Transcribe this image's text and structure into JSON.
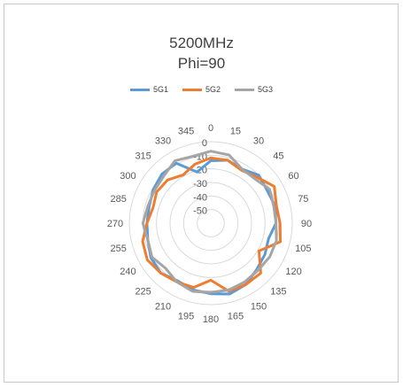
{
  "chart_data": {
    "type": "radar",
    "title": "5200MHz",
    "subtitle": "Phi=90",
    "angles": [
      "0",
      "15",
      "30",
      "45",
      "60",
      "75",
      "90",
      "105",
      "120",
      "135",
      "150",
      "165",
      "180",
      "195",
      "210",
      "225",
      "240",
      "255",
      "270",
      "285",
      "300",
      "315",
      "330",
      "345"
    ],
    "radial_ticks": [
      "0",
      "-10",
      "-20",
      "-30",
      "-40",
      "-50"
    ],
    "rlim": [
      -60,
      0
    ],
    "grid": true,
    "legend_position": "top",
    "series": [
      {
        "name": "5G1",
        "color": "#5b9bd5",
        "values": [
          -14,
          -12,
          -14,
          -10,
          -12,
          -11,
          -12,
          -16,
          -14,
          -12,
          -8,
          -6,
          -8,
          -9,
          -11,
          -8,
          -9,
          -12,
          -13,
          -13,
          -11,
          -9,
          -9,
          -21
        ]
      },
      {
        "name": "5G2",
        "color": "#ed7d31",
        "values": [
          -12,
          -12,
          -15,
          -12,
          -6,
          -10,
          -9,
          -7,
          -19,
          -8,
          -8,
          -8,
          -18,
          -11,
          -10,
          -8,
          -6,
          -8,
          -13,
          -16,
          -14,
          -15,
          -19,
          -15
        ]
      },
      {
        "name": "5G3",
        "color": "#a5a5a5",
        "values": [
          -7,
          -8,
          -14,
          -14,
          -10,
          -12,
          -12,
          -10,
          -10,
          -11,
          -10,
          -9,
          -9,
          -8,
          -10,
          -13,
          -10,
          -12,
          -10,
          -12,
          -12,
          -11,
          -7,
          -9
        ]
      }
    ]
  }
}
